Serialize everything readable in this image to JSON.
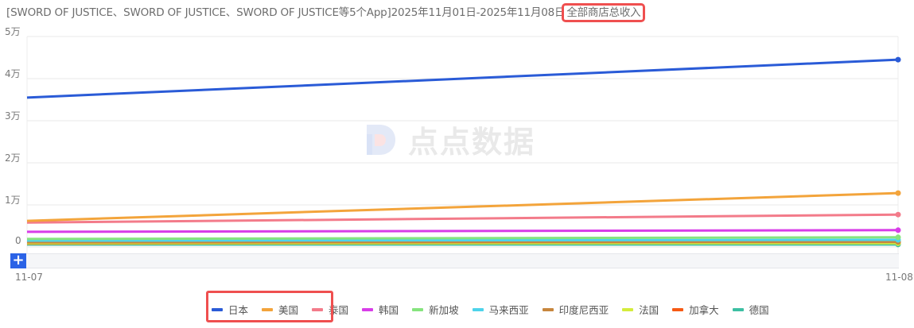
{
  "header": {
    "title_prefix": "[SWORD OF JUSTICE、SWORD OF JUSTICE、SWORD OF JUSTICE等5个App]2025年11月01日-2025年11月08日",
    "title_metric": "全部商店总收入"
  },
  "watermark": "点点数据",
  "zoom_button": "+",
  "y_axis": {
    "ticks": [
      "5万",
      "4万",
      "3万",
      "2万",
      "1万",
      "0"
    ]
  },
  "x_axis": {
    "ticks": [
      "11-07",
      "11-08"
    ]
  },
  "legend": [
    {
      "label": "日本",
      "color": "#2a5bd7"
    },
    {
      "label": "美国",
      "color": "#f3a43b"
    },
    {
      "label": "泰国",
      "color": "#f37b8a"
    },
    {
      "label": "韩国",
      "color": "#d83de8"
    },
    {
      "label": "新加坡",
      "color": "#86e47e"
    },
    {
      "label": "马来西亚",
      "color": "#4dd3ea"
    },
    {
      "label": "印度尼西亚",
      "color": "#c7863d"
    },
    {
      "label": "法国",
      "color": "#d4ec3c"
    },
    {
      "label": "加拿大",
      "color": "#f65a14"
    },
    {
      "label": "德国",
      "color": "#3dbfa3"
    }
  ],
  "chart_data": {
    "type": "line",
    "title": "[SWORD OF JUSTICE、SWORD OF JUSTICE、SWORD OF JUSTICE等5个App]2025年11月01日-2025年11月08日 全部商店总收入",
    "xlabel": "",
    "ylabel": "",
    "x": [
      "11-07",
      "11-08"
    ],
    "ylim": [
      0,
      50000
    ],
    "yticks": [
      "0",
      "1万",
      "2万",
      "3万",
      "4万",
      "5万"
    ],
    "grid": true,
    "legend_position": "bottom",
    "series": [
      {
        "name": "日本",
        "values": [
          35500,
          44500
        ]
      },
      {
        "name": "美国",
        "values": [
          6200,
          12800
        ]
      },
      {
        "name": "泰国",
        "values": [
          5800,
          7700
        ]
      },
      {
        "name": "韩国",
        "values": [
          3600,
          4000
        ]
      },
      {
        "name": "新加坡",
        "values": [
          1900,
          2300
        ]
      },
      {
        "name": "马来西亚",
        "values": [
          1500,
          1700
        ]
      },
      {
        "name": "印度尼西亚",
        "values": [
          1100,
          1200
        ]
      },
      {
        "name": "法国",
        "values": [
          900,
          900
        ]
      },
      {
        "name": "加拿大",
        "values": [
          800,
          1000
        ]
      },
      {
        "name": "德国",
        "values": [
          600,
          600
        ]
      }
    ]
  }
}
